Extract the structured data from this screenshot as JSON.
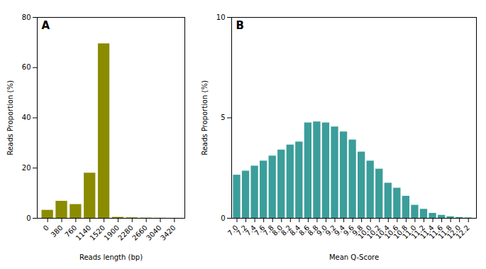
{
  "chart_data": [
    {
      "type": "bar",
      "x": [
        0,
        380,
        760,
        1140,
        1520,
        1900,
        2280,
        2660,
        3040,
        3420
      ],
      "values": [
        3.2,
        6.8,
        5.5,
        18.0,
        69.5,
        0.4,
        0.2,
        0.1,
        0.05,
        0.02
      ],
      "color": "#8B8B00",
      "xlabel": "Reads length (bp)",
      "ylabel": "Reads Proportion (%)",
      "xlim": [
        -280,
        3700
      ],
      "xticks": [
        0,
        380,
        760,
        1140,
        1520,
        1900,
        2280,
        2660,
        3040,
        3420
      ],
      "ylim": [
        0,
        80
      ],
      "yticks": [
        0,
        20,
        40,
        60,
        80
      ],
      "annotation": "A"
    },
    {
      "type": "bar",
      "x": [
        7.0,
        7.2,
        7.4,
        7.6,
        7.8,
        8.0,
        8.2,
        8.4,
        8.6,
        8.8,
        9.0,
        9.2,
        9.4,
        9.6,
        9.8,
        10.0,
        10.2,
        10.4,
        10.6,
        10.8,
        11.0,
        11.2,
        11.4,
        11.6,
        11.8,
        12.0,
        12.2
      ],
      "values": [
        2.15,
        2.35,
        2.6,
        2.85,
        3.1,
        3.4,
        3.65,
        3.8,
        4.75,
        4.8,
        4.75,
        4.55,
        4.3,
        3.9,
        3.3,
        2.85,
        2.45,
        1.75,
        1.5,
        1.1,
        0.65,
        0.45,
        0.25,
        0.15,
        0.08,
        0.04,
        0.02
      ],
      "color": "#3B9E9A",
      "xlabel": "Mean Q-Score",
      "ylabel": "Reads Proportion (%)",
      "xlim": [
        6.88,
        12.38
      ],
      "xticks": [
        {
          "value": 7.0,
          "label": "7.0"
        },
        7.2,
        7.4,
        7.6,
        7.8,
        {
          "value": 8.0,
          "label": "8.0"
        },
        8.2,
        8.4,
        8.6,
        8.8,
        {
          "value": 9.0,
          "label": "9.0"
        },
        9.2,
        9.4,
        9.6,
        9.8,
        {
          "value": 10.0,
          "label": "10.0"
        },
        10.2,
        10.4,
        10.6,
        10.8,
        {
          "value": 11.0,
          "label": "11.0"
        },
        11.2,
        11.4,
        11.6,
        11.8,
        {
          "value": 12.0,
          "label": "12.0"
        },
        12.2
      ],
      "ylim": [
        0,
        10
      ],
      "yticks": [
        0,
        5,
        10
      ],
      "annotation": "B"
    }
  ]
}
